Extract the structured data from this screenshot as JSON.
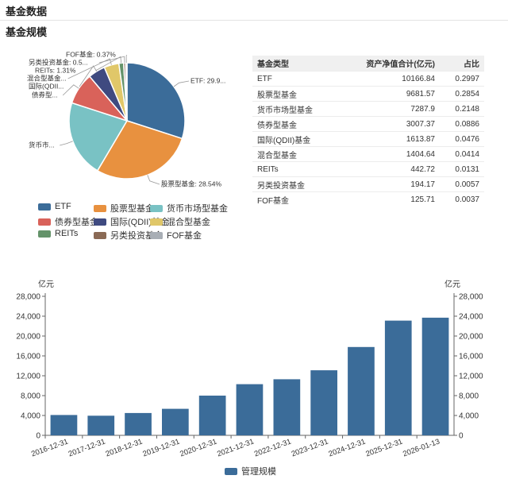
{
  "page": {
    "title": "基金数据"
  },
  "section": {
    "title": "基金规模"
  },
  "table": {
    "headers": [
      "基金类型",
      "资产净值合计(亿元)",
      "占比"
    ],
    "rows": [
      [
        "ETF",
        "10166.84",
        "0.2997"
      ],
      [
        "股票型基金",
        "9681.57",
        "0.2854"
      ],
      [
        "货币市场型基金",
        "7287.9",
        "0.2148"
      ],
      [
        "债券型基金",
        "3007.37",
        "0.0886"
      ],
      [
        "国际(QDII)基金",
        "1613.87",
        "0.0476"
      ],
      [
        "混合型基金",
        "1404.64",
        "0.0414"
      ],
      [
        "REITs",
        "442.72",
        "0.0131"
      ],
      [
        "另类投资基金",
        "194.17",
        "0.0057"
      ],
      [
        "FOF基金",
        "125.71",
        "0.0037"
      ]
    ]
  },
  "chart_data": [
    {
      "type": "pie",
      "labels": [
        "ETF",
        "股票型基金",
        "货币市场型基金",
        "债券型基金",
        "国际(QDII)基金",
        "混合型基金",
        "REITs",
        "另类投资基金",
        "FOF基金"
      ],
      "values": [
        29.97,
        28.54,
        21.48,
        8.86,
        4.76,
        4.14,
        1.31,
        0.57,
        0.37
      ],
      "colors": [
        "#3b6c99",
        "#e8913f",
        "#79c2c4",
        "#d9625a",
        "#3f4a80",
        "#e0c769",
        "#64936a",
        "#8a6a55",
        "#a8aeb5"
      ],
      "slice_labels": [
        "ETF: 29.9...",
        "股票型基金: 28.54%",
        "货币市...",
        "债券型...",
        "国际(QDII...",
        "混合型基金...",
        "REITs: 1.31%",
        "另类投资基金: 0.5...",
        "FOF基金: 0.37%"
      ],
      "legend": "bottom"
    },
    {
      "type": "bar",
      "categories": [
        "2016-12-31",
        "2017-12-31",
        "2018-12-31",
        "2019-12-31",
        "2020-12-31",
        "2021-12-31",
        "2022-12-31",
        "2023-12-31",
        "2024-12-31",
        "2025-12-31",
        "2026-01-13"
      ],
      "series": [
        {
          "name": "管理规模",
          "values": [
            4100,
            3950,
            4500,
            5350,
            8000,
            10300,
            11300,
            13100,
            17800,
            23100,
            23700
          ],
          "color": "#3b6c99"
        }
      ],
      "ylabel": "亿元",
      "ylabel_right": "亿元",
      "ylim": [
        0,
        28000
      ],
      "yticks": [
        "28,000",
        "24,000",
        "20,000",
        "16,000",
        "12,000",
        "8,000",
        "4,000",
        "0"
      ],
      "ytick_values": [
        28000,
        24000,
        20000,
        16000,
        12000,
        8000,
        4000,
        0
      ],
      "legend": "bottom",
      "grid": false
    }
  ]
}
